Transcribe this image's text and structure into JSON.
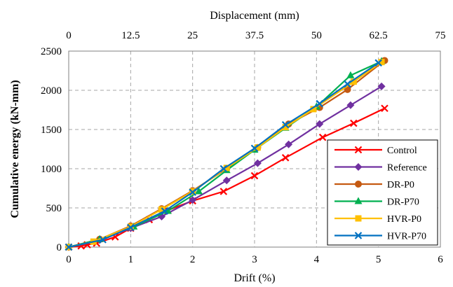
{
  "chart_data": {
    "type": "line",
    "title": "",
    "xlabel": "Drift (%)",
    "ylabel": "Cumulative energy (kN-mm)",
    "x2label": "Displacement (mm)",
    "xlim": [
      0,
      6
    ],
    "ylim": [
      0,
      2500
    ],
    "x2lim": [
      0,
      75
    ],
    "xticks": [
      0,
      1,
      2,
      3,
      4,
      5,
      6
    ],
    "yticks": [
      0,
      500,
      1000,
      1500,
      2000,
      2500
    ],
    "x2ticks": [
      "0",
      "12.5",
      "25",
      "37.5",
      "50",
      "62.5",
      "75"
    ],
    "grid": true,
    "legend_position": "bottom-right",
    "series": [
      {
        "name": "Control",
        "color": "#ff0000",
        "marker": "x",
        "x": [
          0,
          0.2,
          0.3,
          0.45,
          0.75,
          1.0,
          1.3,
          1.6,
          2.0,
          2.5,
          3.0,
          3.5,
          4.1,
          4.6,
          5.1
        ],
        "y": [
          0,
          15,
          30,
          50,
          130,
          240,
          350,
          470,
          590,
          710,
          910,
          1140,
          1400,
          1580,
          1770
        ]
      },
      {
        "name": "Reference",
        "color": "#7030a0",
        "marker": "diamond",
        "x": [
          0,
          0.5,
          1.0,
          1.5,
          2.0,
          2.55,
          3.05,
          3.55,
          4.05,
          4.55,
          5.05
        ],
        "y": [
          0,
          90,
          240,
          390,
          600,
          850,
          1070,
          1310,
          1570,
          1810,
          2050
        ]
      },
      {
        "name": "DR-P0",
        "color": "#c55a11",
        "marker": "circle",
        "x": [
          0,
          0.5,
          1.0,
          1.5,
          2.0,
          2.55,
          3.05,
          3.55,
          4.05,
          4.5,
          5.1
        ],
        "y": [
          0,
          100,
          270,
          490,
          720,
          1000,
          1270,
          1570,
          1780,
          2010,
          2380
        ]
      },
      {
        "name": "DR-P70",
        "color": "#00b050",
        "marker": "triangle",
        "x": [
          0,
          0.5,
          1.05,
          1.6,
          2.1,
          2.55,
          3.0,
          3.5,
          4.0,
          4.55,
          5.05
        ],
        "y": [
          0,
          100,
          260,
          460,
          710,
          980,
          1240,
          1520,
          1790,
          2190,
          2370
        ]
      },
      {
        "name": "HVR-P0",
        "color": "#ffc000",
        "marker": "square",
        "x": [
          0,
          0.4,
          1.0,
          1.5,
          2.0,
          2.55,
          3.05,
          3.5,
          3.95,
          4.6,
          5.05
        ],
        "y": [
          0,
          70,
          260,
          480,
          710,
          1010,
          1270,
          1530,
          1760,
          2110,
          2360
        ]
      },
      {
        "name": "HVR-P70",
        "color": "#0070c0",
        "marker": "x",
        "x": [
          0,
          0.55,
          1.0,
          1.55,
          2.0,
          2.5,
          3.0,
          3.5,
          4.05,
          4.5,
          5.0
        ],
        "y": [
          0,
          95,
          250,
          460,
          700,
          1000,
          1260,
          1560,
          1830,
          2080,
          2350
        ]
      }
    ]
  }
}
